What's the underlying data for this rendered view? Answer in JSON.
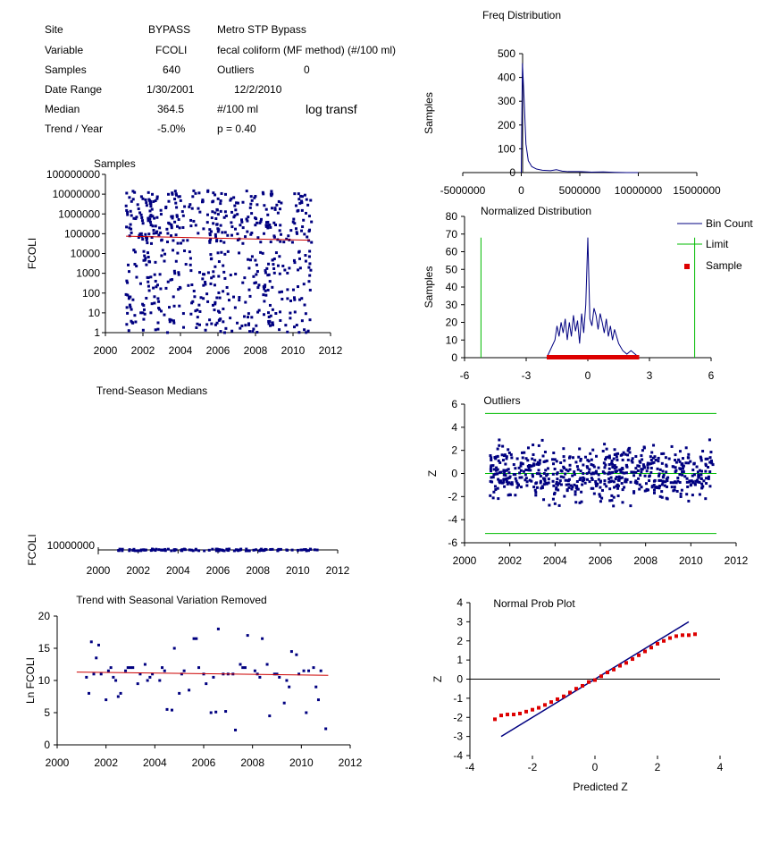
{
  "info": {
    "site_label": "Site",
    "site_code": "BYPASS",
    "site_name": "Metro STP Bypass",
    "variable_label": "Variable",
    "variable_code": "FCOLI",
    "variable_desc": "fecal coliform (MF method) (#/100 ml)",
    "samples_label": "Samples",
    "samples_value": "640",
    "outliers_label": "Outliers",
    "outliers_value": "0",
    "date_range_label": "Date Range",
    "date_start": "1/30/2001",
    "date_end": "12/2/2010",
    "median_label": "Median",
    "median_value": "364.5",
    "median_unit": "#/100 ml",
    "transform_note": "log transf",
    "trend_label": "Trend / Year",
    "trend_value": "-5.0%",
    "p_value": "p = 0.40"
  },
  "chart_data": [
    {
      "id": "samples",
      "type": "scatter",
      "title": "Samples",
      "xlabel": "",
      "ylabel": "FCOLI",
      "yscale": "log",
      "xlim": [
        2000,
        2012
      ],
      "ylim": [
        1,
        100000000
      ],
      "xticks": [
        "2000",
        "2002",
        "2004",
        "2006",
        "2008",
        "2010",
        "2012"
      ],
      "yticks": [
        "1",
        "10",
        "100",
        "1000",
        "10000",
        "100000",
        "1000000",
        "10000000",
        "100000000"
      ],
      "trend": {
        "x": [
          2001.1,
          2010.9
        ],
        "y": [
          75000,
          47000
        ],
        "color": "#cc0000"
      },
      "point_color": "#000080",
      "note": "many scattered sample points 2001-2011 spanning 1 to 10,000,000"
    },
    {
      "id": "trend_season",
      "type": "scatter",
      "title": "Trend-Season Medians",
      "xlabel": "",
      "ylabel": "FCOLI",
      "xlim": [
        2000,
        2012
      ],
      "xticks": [
        "2000",
        "2002",
        "2004",
        "2006",
        "2008",
        "2010",
        "2012"
      ],
      "yticks": [
        "10000000"
      ],
      "point_color": "#000080"
    },
    {
      "id": "trend_removed",
      "type": "scatter",
      "title": "Trend with Seasonal Variation Removed",
      "xlabel": "",
      "ylabel": "Ln FCOLI",
      "xlim": [
        2000,
        2012
      ],
      "ylim": [
        0,
        20
      ],
      "xticks": [
        "2000",
        "2002",
        "2004",
        "2006",
        "2008",
        "2010",
        "2012"
      ],
      "yticks": [
        "0",
        "5",
        "10",
        "15",
        "20"
      ],
      "trend": {
        "x": [
          2000.8,
          2011.1
        ],
        "y": [
          11.3,
          10.8
        ],
        "color": "#cc0000"
      },
      "point_color": "#000080",
      "x": [
        2001.2,
        2001.4,
        2001.6,
        2001.8,
        2002.0,
        2002.2,
        2002.4,
        2002.6,
        2002.8,
        2003.0,
        2003.3,
        2003.6,
        2003.9,
        2004.2,
        2004.5,
        2004.8,
        2005.1,
        2005.4,
        2005.7,
        2006.0,
        2006.3,
        2006.6,
        2006.9,
        2007.2,
        2007.5,
        2007.8,
        2008.1,
        2008.4,
        2008.7,
        2009.0,
        2009.3,
        2009.6,
        2009.9,
        2010.2,
        2010.5,
        2010.8,
        2001.3,
        2001.7,
        2002.1,
        2002.5,
        2002.9,
        2003.4,
        2003.8,
        2004.3,
        2004.7,
        2005.2,
        2005.6,
        2006.1,
        2006.5,
        2006.8,
        2007.3,
        2007.7,
        2008.2,
        2008.6,
        2009.1,
        2009.5,
        2009.8,
        2010.3,
        2010.7,
        2011.0,
        2001.5,
        2002.3,
        2003.1,
        2003.7,
        2004.4,
        2005.0,
        2005.8,
        2006.4,
        2007.0,
        2007.6,
        2008.3,
        2008.9,
        2009.4,
        2010.1,
        2010.6
      ],
      "y": [
        10.5,
        16,
        13.5,
        11,
        7,
        12,
        10,
        8,
        11.5,
        12,
        9.5,
        12.5,
        11,
        10,
        5.5,
        15,
        11,
        8.5,
        16.5,
        11,
        5,
        18,
        5.2,
        11,
        12.5,
        17,
        11.5,
        16.5,
        4.5,
        11,
        6.5,
        14.5,
        11,
        5,
        12,
        11.5,
        8,
        15.5,
        11.5,
        7.5,
        12,
        11,
        10.5,
        12,
        5.4,
        11.5,
        16.5,
        9.5,
        5.1,
        11,
        2.3,
        12,
        11,
        12.5,
        10.5,
        9,
        14,
        11.5,
        7,
        2.5,
        11,
        10.5,
        12,
        10,
        11.5,
        8,
        12,
        10.5,
        11,
        12,
        10.5,
        11,
        10,
        11.5,
        9
      ]
    },
    {
      "id": "freq",
      "type": "line",
      "title": "Freq Distribution",
      "xlabel": "",
      "ylabel": "Samples",
      "xlim": [
        -5000000,
        15000000
      ],
      "ylim": [
        0,
        500
      ],
      "xticks": [
        "-5000000",
        "0",
        "5000000",
        "10000000",
        "15000000"
      ],
      "yticks": [
        "0",
        "100",
        "200",
        "300",
        "400",
        "500"
      ],
      "x": [
        0,
        100000,
        250000,
        400000,
        600000,
        900000,
        1300000,
        1800000,
        2500000,
        3000000,
        3500000,
        4000000,
        5000000,
        6000000,
        7000000,
        8000000,
        9000000,
        10000000
      ],
      "y": [
        0,
        460,
        300,
        120,
        50,
        25,
        15,
        10,
        8,
        12,
        6,
        4,
        4,
        2,
        3,
        1,
        0,
        0
      ],
      "color": "#000080"
    },
    {
      "id": "normalized",
      "type": "line",
      "title": "Normalized Distribution",
      "xlabel": "",
      "ylabel": "Samples",
      "xlim": [
        -6,
        6
      ],
      "ylim": [
        0,
        80
      ],
      "xticks": [
        "-6",
        "-3",
        "0",
        "3",
        "6"
      ],
      "yticks": [
        "0",
        "10",
        "20",
        "30",
        "40",
        "50",
        "60",
        "70",
        "80"
      ],
      "legend": [
        "Bin Count",
        "Limit",
        "Sample"
      ],
      "x": [
        -2.0,
        -1.8,
        -1.6,
        -1.5,
        -1.4,
        -1.3,
        -1.2,
        -1.1,
        -1.0,
        -0.9,
        -0.8,
        -0.7,
        -0.6,
        -0.5,
        -0.4,
        -0.3,
        -0.2,
        -0.1,
        0.0,
        0.1,
        0.2,
        0.3,
        0.4,
        0.5,
        0.6,
        0.7,
        0.8,
        0.9,
        1.0,
        1.1,
        1.2,
        1.3,
        1.5,
        1.7,
        1.9,
        2.1,
        2.3,
        2.5
      ],
      "y": [
        0,
        5,
        10,
        18,
        12,
        20,
        14,
        22,
        10,
        20,
        12,
        24,
        15,
        21,
        8,
        25,
        14,
        30,
        68,
        22,
        18,
        28,
        24,
        16,
        25,
        20,
        14,
        22,
        12,
        18,
        10,
        16,
        8,
        4,
        2,
        4,
        2,
        0
      ],
      "limit": [
        -5.2,
        5.2
      ],
      "sample_range": [
        -2.0,
        2.5
      ],
      "colors": {
        "line": "#000080",
        "limit": "#00bb00",
        "sample": "#dd0000"
      }
    },
    {
      "id": "outliers",
      "type": "scatter",
      "title": "Outliers",
      "xlabel": "",
      "ylabel": "Z",
      "xlim": [
        2000,
        2012
      ],
      "ylim": [
        -6,
        6
      ],
      "xticks": [
        "2000",
        "2002",
        "2004",
        "2006",
        "2008",
        "2010",
        "2012"
      ],
      "yticks": [
        "-6",
        "-4",
        "-2",
        "0",
        "2",
        "4",
        "6"
      ],
      "limit": [
        -5.2,
        5.2
      ],
      "point_color": "#000080"
    },
    {
      "id": "normal_prob",
      "type": "scatter",
      "title": "Normal Prob Plot",
      "xlabel": "Predicted Z",
      "ylabel": "Z",
      "xlim": [
        -4,
        4
      ],
      "ylim": [
        -4,
        4
      ],
      "xticks": [
        "-4",
        "-2",
        "0",
        "2",
        "4"
      ],
      "yticks": [
        "-4",
        "-3",
        "-2",
        "-1",
        "0",
        "1",
        "2",
        "3",
        "4"
      ],
      "line": {
        "x": [
          -3,
          3
        ],
        "y": [
          -3,
          3
        ],
        "color": "#000080"
      },
      "points_color": "#dd0000",
      "points": {
        "x": [
          -3.2,
          -3,
          -2.8,
          -2.6,
          -2.4,
          -2.2,
          -2,
          -1.8,
          -1.6,
          -1.4,
          -1.2,
          -1,
          -0.8,
          -0.6,
          -0.4,
          -0.2,
          0,
          0.2,
          0.4,
          0.6,
          0.8,
          1,
          1.2,
          1.4,
          1.6,
          1.8,
          2,
          2.2,
          2.4,
          2.6,
          2.8,
          3,
          3.2
        ],
        "y": [
          -2.1,
          -1.9,
          -1.85,
          -1.85,
          -1.8,
          -1.7,
          -1.6,
          -1.5,
          -1.35,
          -1.2,
          -1.05,
          -0.9,
          -0.7,
          -0.5,
          -0.35,
          -0.15,
          -0.05,
          0.15,
          0.35,
          0.5,
          0.7,
          0.85,
          1.05,
          1.25,
          1.45,
          1.65,
          1.85,
          2.0,
          2.15,
          2.25,
          2.3,
          2.3,
          2.35
        ]
      }
    }
  ]
}
